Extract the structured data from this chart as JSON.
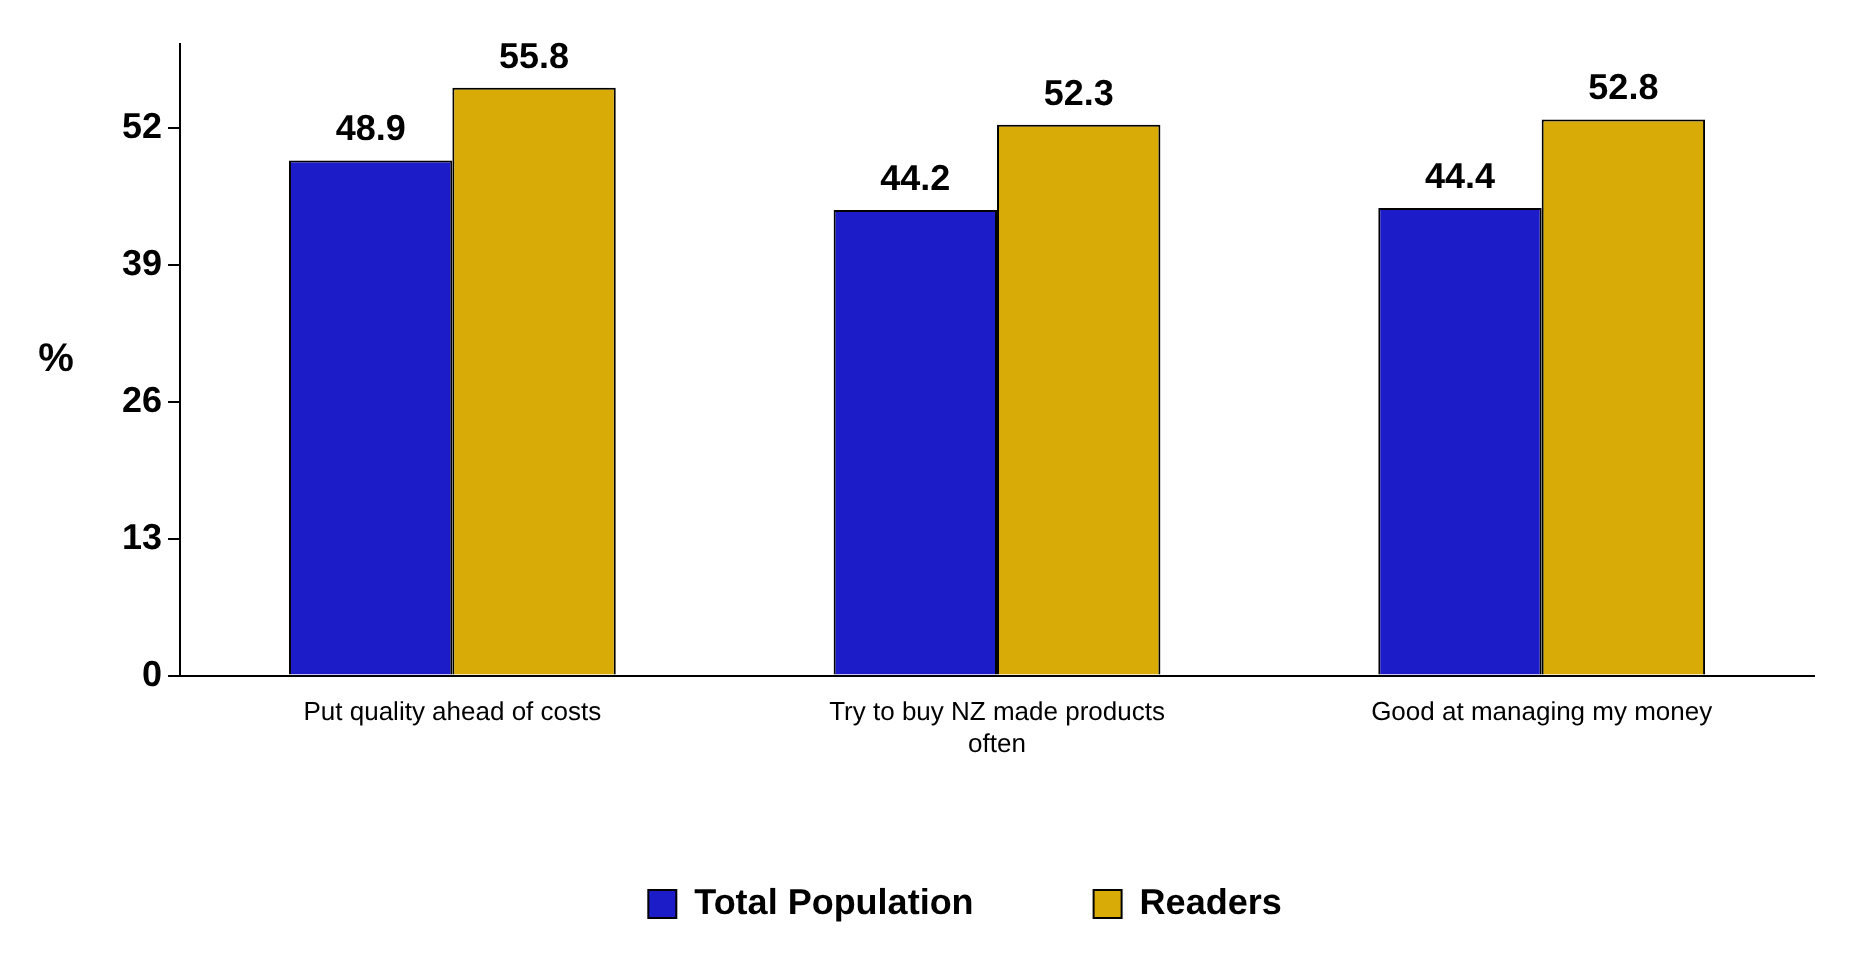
{
  "chart_data": {
    "type": "bar",
    "ylabel": "%",
    "categories": [
      "Put quality ahead of costs",
      "Try to buy NZ made products often",
      "Good at managing my money"
    ],
    "series": [
      {
        "name": "Total Population",
        "color": "#1c1cc8",
        "values": [
          48.9,
          44.2,
          44.4
        ]
      },
      {
        "name": "Readers",
        "color": "#d9ab06",
        "values": [
          55.8,
          52.3,
          52.8
        ]
      }
    ],
    "ylim": [
      0,
      60
    ],
    "yticks": [
      0,
      13,
      26,
      39,
      52
    ],
    "grid": false,
    "legend": "bottom",
    "data_labels": true
  }
}
